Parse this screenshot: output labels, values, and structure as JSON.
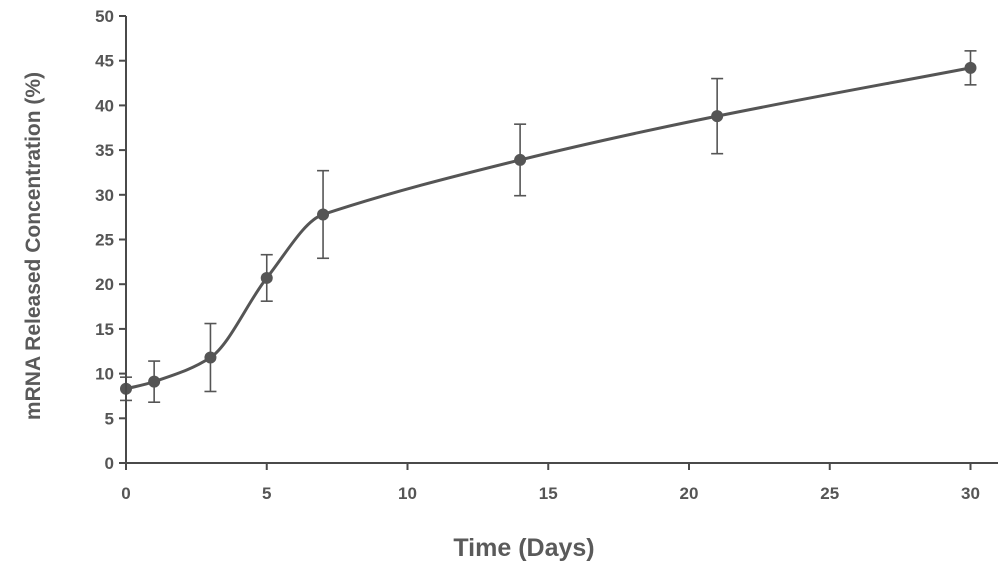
{
  "chart_data": {
    "type": "line",
    "title": "",
    "xlabel": "Time (Days)",
    "ylabel": "mRNA Released Concentration (%)",
    "xlim": [
      0,
      31
    ],
    "ylim": [
      0,
      50
    ],
    "xticks": [
      0,
      5,
      10,
      15,
      20,
      25,
      30
    ],
    "yticks": [
      0,
      5,
      10,
      15,
      20,
      25,
      30,
      35,
      40,
      45,
      50
    ],
    "grid": false,
    "legend": "none",
    "smooth": true,
    "series": [
      {
        "x": [
          0,
          1,
          3,
          5,
          7,
          14,
          21,
          30
        ],
        "y": [
          8.3,
          9.1,
          11.8,
          20.7,
          27.8,
          33.9,
          38.8,
          44.2
        ],
        "error": [
          1.3,
          2.3,
          3.8,
          2.6,
          4.9,
          4.0,
          4.2,
          1.9
        ],
        "color": "#555555"
      }
    ]
  }
}
